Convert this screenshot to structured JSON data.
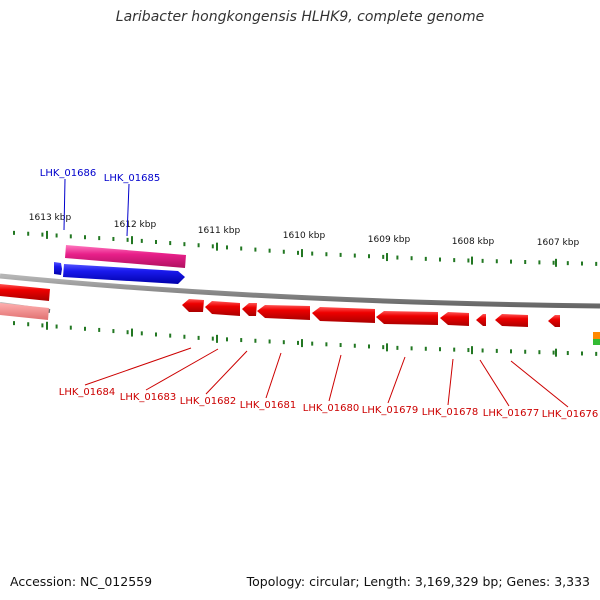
{
  "title": "Laribacter hongkongensis HLHK9, complete genome",
  "footer": {
    "accession": "Accession: NC_012559",
    "summary": "Topology: circular; Length: 3,169,329 bp; Genes: 3,333"
  },
  "scale_ticks": [
    "1613 kbp",
    "1612 kbp",
    "1611 kbp",
    "1610 kbp",
    "1609 kbp",
    "1608 kbp",
    "1607 kbp"
  ],
  "forward_genes": [
    "LHK_01686",
    "LHK_01685"
  ],
  "reverse_genes": [
    "LHK_01684",
    "LHK_01683",
    "LHK_01682",
    "LHK_01681",
    "LHK_01680",
    "LHK_01679",
    "LHK_01678",
    "LHK_01677",
    "LHK_01676"
  ],
  "colors": {
    "forward_label": "#0000cc",
    "reverse_label": "#cc0000",
    "gene_red": "#ee0000",
    "gene_blue": "#1a1aee",
    "gene_pink": "#e8208a",
    "backbone": "#8c8c8c",
    "tick_green": "#227722"
  }
}
